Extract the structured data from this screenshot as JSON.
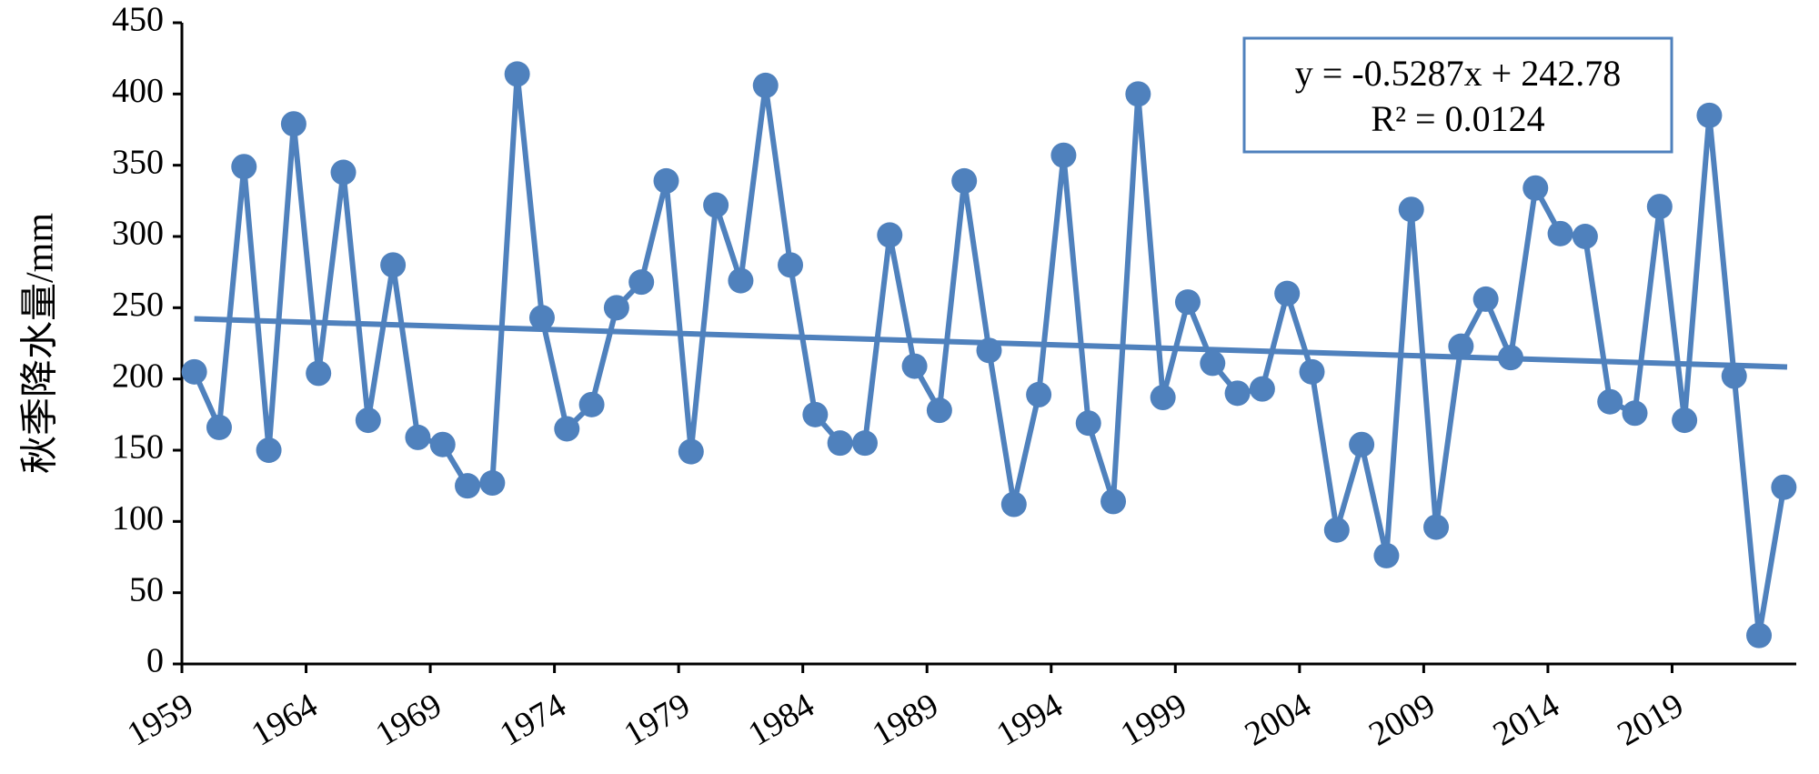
{
  "chart_data": {
    "type": "line",
    "title": "",
    "xlabel": "",
    "ylabel": "秋季降水量/mm",
    "ylim": [
      0,
      450
    ],
    "yticks": [
      0,
      50,
      100,
      150,
      200,
      250,
      300,
      350,
      400,
      450
    ],
    "xlim": [
      1959,
      2023
    ],
    "xticks": [
      1959,
      1964,
      1969,
      1974,
      1979,
      1984,
      1989,
      1994,
      1999,
      2004,
      2009,
      2014,
      2019
    ],
    "grid": false,
    "legend": "none",
    "series_color": "#4f81bd",
    "x": [
      1959,
      1960,
      1961,
      1962,
      1963,
      1964,
      1965,
      1966,
      1967,
      1968,
      1969,
      1970,
      1971,
      1972,
      1973,
      1974,
      1975,
      1976,
      1977,
      1978,
      1979,
      1980,
      1981,
      1982,
      1983,
      1984,
      1985,
      1986,
      1987,
      1988,
      1989,
      1990,
      1991,
      1992,
      1993,
      1994,
      1995,
      1996,
      1997,
      1998,
      1999,
      2000,
      2001,
      2002,
      2003,
      2004,
      2005,
      2006,
      2007,
      2008,
      2009,
      2010,
      2011,
      2012,
      2013,
      2014,
      2015,
      2016,
      2017,
      2018,
      2019,
      2020,
      2021,
      2022,
      2023
    ],
    "series": [
      {
        "values": [
          205,
          166,
          349,
          150,
          379,
          204,
          345,
          171,
          280,
          159,
          154,
          125,
          127,
          414,
          243,
          165,
          182,
          250,
          268,
          339,
          149,
          322,
          269,
          406,
          280,
          175,
          155,
          155,
          301,
          209,
          178,
          339,
          220,
          112,
          189,
          357,
          169,
          114,
          400,
          187,
          254,
          211,
          190,
          193,
          260,
          205,
          94,
          154,
          76,
          319,
          96,
          223,
          256,
          215,
          334,
          302,
          300,
          184,
          176,
          321,
          171,
          385,
          202,
          20,
          124
        ],
        "trendline": {
          "slope": -0.5287,
          "intercept": 242.78,
          "equation": "y = -0.5287x + 242.78",
          "r2": "R² = 0.0124"
        }
      }
    ]
  }
}
